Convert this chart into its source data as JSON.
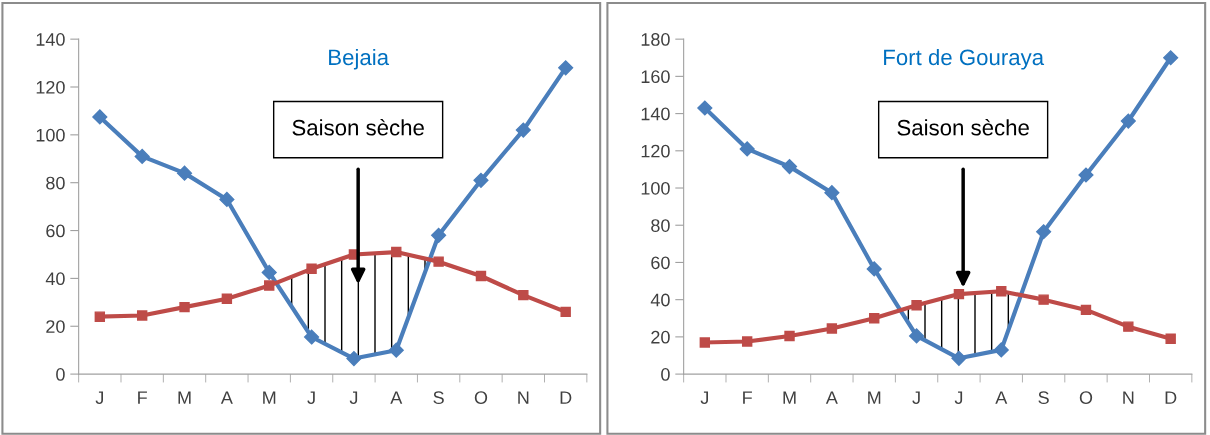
{
  "chart_data": [
    {
      "type": "line",
      "title": "Bejaia",
      "categories": [
        "J",
        "F",
        "M",
        "A",
        "M",
        "J",
        "J",
        "A",
        "S",
        "O",
        "N",
        "D"
      ],
      "series": [
        {
          "color": "#4a7ebb",
          "marker": "diamond",
          "values": [
            107.5,
            91,
            84,
            73,
            42.5,
            15.5,
            6.5,
            10,
            58,
            81,
            102,
            128
          ]
        },
        {
          "color": "#be4b48",
          "marker": "square",
          "values": [
            24,
            24.5,
            28,
            31.5,
            37,
            44,
            50,
            51,
            47,
            41,
            33,
            26
          ]
        }
      ],
      "ylim": [
        0,
        140
      ],
      "yticks": [
        0,
        20,
        40,
        60,
        80,
        100,
        120,
        140
      ],
      "grid": false,
      "legend": false,
      "annotations": [
        "Saison sèche"
      ]
    },
    {
      "type": "line",
      "title": "Fort de Gouraya",
      "categories": [
        "J",
        "F",
        "M",
        "A",
        "M",
        "J",
        "J",
        "A",
        "S",
        "O",
        "N",
        "D"
      ],
      "series": [
        {
          "color": "#4a7ebb",
          "marker": "diamond",
          "values": [
            143,
            121,
            111.5,
            97.5,
            56.5,
            20.5,
            8.5,
            13,
            76.5,
            107,
            136,
            170
          ]
        },
        {
          "color": "#be4b48",
          "marker": "square",
          "values": [
            17,
            17.5,
            20.5,
            24.5,
            30,
            37,
            43,
            44.5,
            40,
            34.5,
            25.5,
            19
          ]
        }
      ],
      "ylim": [
        0,
        180
      ],
      "yticks": [
        0,
        20,
        40,
        60,
        80,
        100,
        120,
        140,
        160,
        180
      ],
      "grid": false,
      "legend": false,
      "annotations": [
        "Saison sèche"
      ]
    }
  ]
}
